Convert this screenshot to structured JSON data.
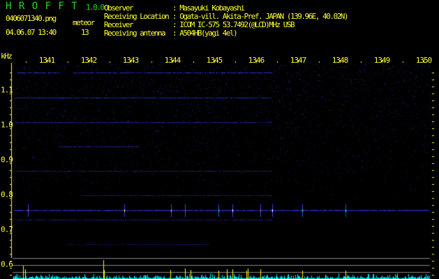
{
  "header": {
    "app_name": "H R O F F T",
    "version": "1.0.0",
    "filename": "0406071340.png",
    "datetime": "04.06.07 13:40",
    "count_label": "meteor",
    "count_value": "13"
  },
  "info": [
    {
      "label": "Observer",
      "value": ": Masayuki Kobayashi"
    },
    {
      "label": "Receiving Location",
      "value": ": Ogata-vill. Akita-Pref. JAPAN (139.96E, 40.02N)"
    },
    {
      "label": "Receiver",
      "value": ": ICOM IC-575 53.7492(@LCD)MHz USB"
    },
    {
      "label": "Receiving antenna",
      "value": ": A504HB(yagi 4el)"
    }
  ],
  "spectrogram": {
    "y_unit": "kHz",
    "x_ticks": [
      "1341",
      "1342",
      "1343",
      "1344",
      "1345",
      "1346",
      "1347",
      "1348",
      "1349",
      "1350"
    ],
    "y_ticks": [
      "1.1",
      "1.0",
      "0.9",
      "0.8",
      "0.7",
      "0.6"
    ],
    "colors": {
      "text": "#ffff33",
      "title": "#22dd22",
      "signal": "#2233ff",
      "histogram": "#00e5ee",
      "spike": "#ffff00"
    }
  }
}
